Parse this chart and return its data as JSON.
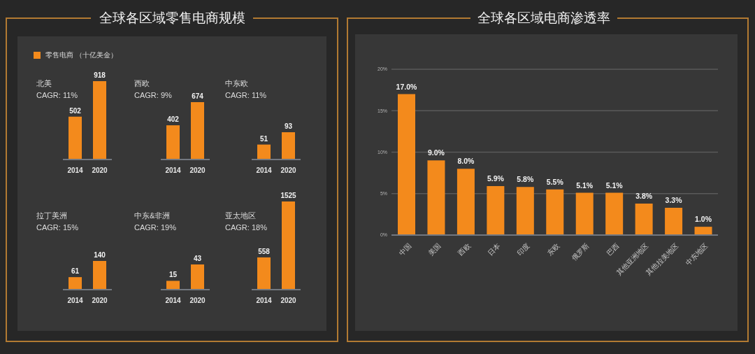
{
  "chart_data": [
    {
      "type": "other",
      "title": "全球各区域零售电商规模"
    },
    {
      "type": "bar",
      "title": "北美",
      "subtitle": "CAGR: 11%",
      "categories": [
        "2014",
        "2020"
      ],
      "series": [
        {
          "name": "零售电商 （十亿美金）",
          "color": "#f38a1c",
          "values": [
            502,
            918
          ]
        }
      ],
      "data_labels": true,
      "legend": "top left"
    },
    {
      "type": "bar",
      "title": "西欧",
      "subtitle": "CAGR: 9%",
      "categories": [
        "2014",
        "2020"
      ],
      "values": [
        402,
        674
      ],
      "color": "#f38a1c",
      "data_labels": true
    },
    {
      "type": "bar",
      "title": "中东欧",
      "subtitle": "CAGR: 11%",
      "categories": [
        "2014",
        "2020"
      ],
      "values": [
        51,
        93
      ],
      "color": "#f38a1c",
      "data_labels": true
    },
    {
      "type": "bar",
      "title": "拉丁美洲",
      "subtitle": "CAGR: 15%",
      "categories": [
        "2014",
        "2020"
      ],
      "values": [
        61,
        140
      ],
      "color": "#f38a1c",
      "data_labels": true
    },
    {
      "type": "bar",
      "title": "中东&非洲",
      "subtitle": "CAGR: 19%",
      "categories": [
        "2014",
        "2020"
      ],
      "values": [
        15,
        43
      ],
      "color": "#f38a1c",
      "data_labels": true
    },
    {
      "type": "bar",
      "title": "亚太地区",
      "subtitle": "CAGR: 18%",
      "categories": [
        "2014",
        "2020"
      ],
      "values": [
        558,
        1525
      ],
      "color": "#f38a1c",
      "data_labels": true
    },
    {
      "type": "bar",
      "title": "全球各区域电商渗透率",
      "categories": [
        "中国",
        "美国",
        "西欧",
        "日本",
        "印度",
        "东欧",
        "俄罗斯",
        "巴西",
        "其他亚洲地区",
        "其他拉美地区",
        "中东地区"
      ],
      "values": [
        17.0,
        9.0,
        8.0,
        5.9,
        5.8,
        5.5,
        5.1,
        5.1,
        3.8,
        3.3,
        1.0
      ],
      "color": "#f38a1c",
      "value_labels": [
        "17.0%",
        "9.0%",
        "8.0%",
        "5.9%",
        "5.8%",
        "5.5%",
        "5.1%",
        "5.1%",
        "3.8%",
        "3.3%",
        "1.0%"
      ],
      "ylim": [
        0,
        20
      ],
      "yticks": [
        {
          "value": 0,
          "label": "0%"
        },
        {
          "value": 5,
          "label": "5%"
        },
        {
          "value": 10,
          "label": "10%"
        },
        {
          "value": 15,
          "label": "15%"
        },
        {
          "value": 20,
          "label": "20%"
        }
      ],
      "grid": "y"
    }
  ]
}
